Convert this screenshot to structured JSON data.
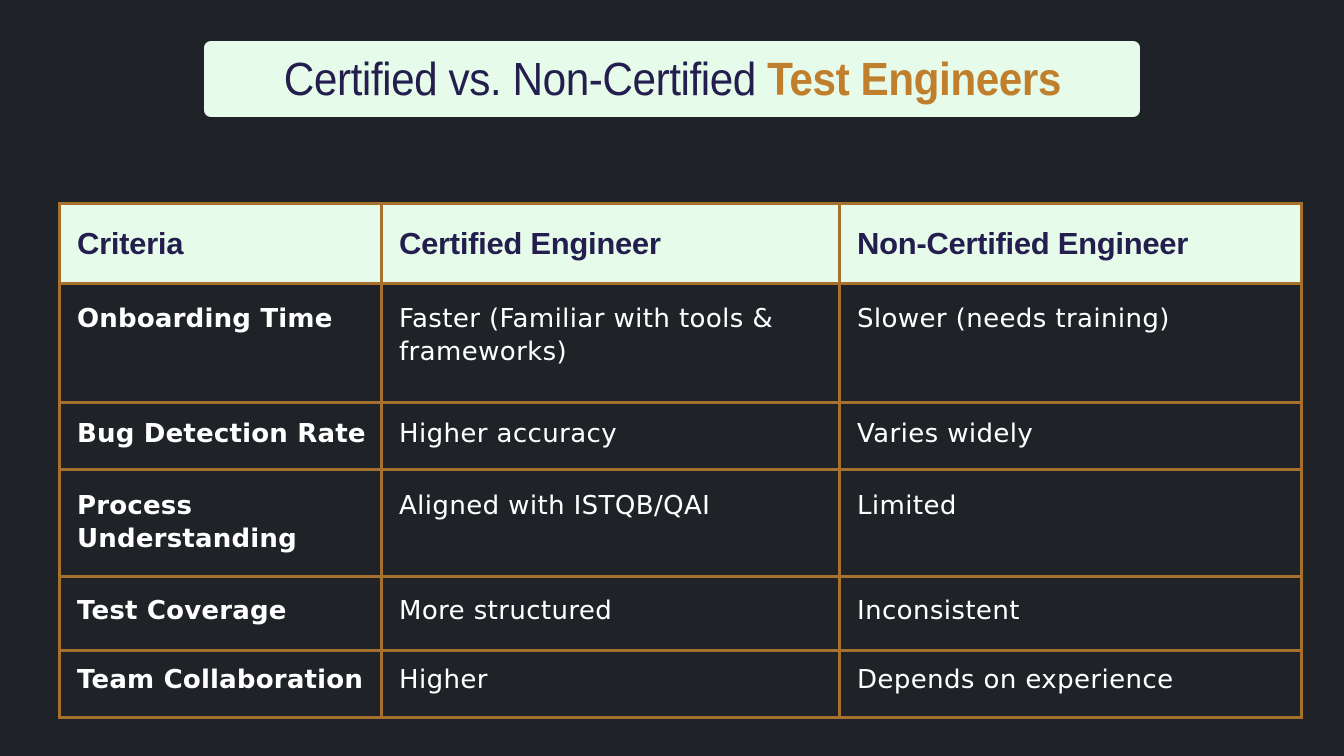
{
  "title": {
    "main": "Certified vs. Non-Certified",
    "accent": "Test Engineers"
  },
  "table": {
    "headers": [
      "Criteria",
      "Certified Engineer",
      "Non-Certified Engineer"
    ],
    "rows": [
      [
        "Onboarding Time",
        "Faster (Familiar with tools & frameworks)",
        "Slower (needs training)"
      ],
      [
        "Bug Detection Rate",
        "Higher accuracy",
        "Varies widely"
      ],
      [
        "Process Understanding",
        "Aligned with ISTQB/QAI",
        "Limited"
      ],
      [
        "Test Coverage",
        "More structured",
        "Inconsistent"
      ],
      [
        "Team Collaboration",
        "Higher",
        "Depends on experience"
      ]
    ]
  },
  "colors": {
    "background": "#1f2226",
    "header_bg": "#e6fbe9",
    "header_text": "#241e4e",
    "accent": "#bf7f2c",
    "border": "#a8702d"
  }
}
